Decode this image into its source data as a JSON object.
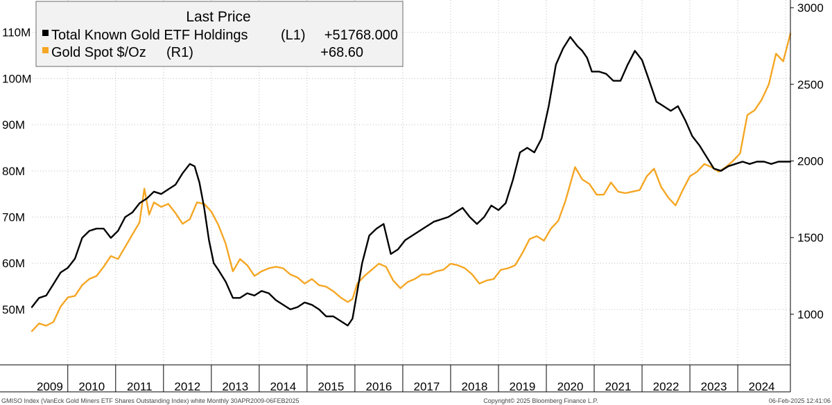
{
  "legend": {
    "header": "Last Price",
    "entries": [
      {
        "name": "Total Known Gold ETF Holdings",
        "axis": "(L1)",
        "value": "+51768.000",
        "color": "#000000"
      },
      {
        "name": "Gold Spot $/Oz",
        "axis": "(R1)",
        "value": "+68.60",
        "color": "#f5a623"
      }
    ]
  },
  "footer": {
    "left": "GMISO Index (VanEck Gold Miners ETF Shares Outstanding Index) white  Monthly 30APR2009-06FEB2025",
    "center": "Copyright© 2025 Bloomberg Finance L.P.",
    "right": "06-Feb-2025 12:41:06"
  },
  "chart_data": {
    "type": "line",
    "x_range": [
      2009.25,
      2025.1
    ],
    "x_tick_labels": [
      "2009",
      "2010",
      "2011",
      "2012",
      "2013",
      "2014",
      "2015",
      "2016",
      "2017",
      "2018",
      "2019",
      "2020",
      "2021",
      "2022",
      "2023",
      "2024"
    ],
    "left_axis": {
      "ylim": [
        38,
        117
      ],
      "ticks": [
        50,
        60,
        70,
        80,
        90,
        100,
        110
      ],
      "tick_labels": [
        "50M",
        "60M",
        "70M",
        "80M",
        "90M",
        "100M",
        "110M"
      ]
    },
    "right_axis": {
      "ylim": [
        670,
        3050
      ],
      "ticks": [
        1000,
        1500,
        2000,
        2500,
        3000
      ],
      "tick_labels": [
        "1000",
        "1500",
        "2000",
        "2500",
        "3000"
      ]
    },
    "grid": true,
    "legend_position": "top-left",
    "series": [
      {
        "name": "Total Known Gold ETF Holdings",
        "axis": "left",
        "unit": "M",
        "color": "#000000",
        "x": [
          2009.25,
          2009.4,
          2009.55,
          2009.7,
          2009.85,
          2010.0,
          2010.15,
          2010.3,
          2010.45,
          2010.6,
          2010.75,
          2010.9,
          2011.05,
          2011.2,
          2011.35,
          2011.5,
          2011.65,
          2011.8,
          2011.95,
          2012.1,
          2012.25,
          2012.4,
          2012.55,
          2012.65,
          2012.75,
          2012.85,
          2012.95,
          2013.05,
          2013.15,
          2013.3,
          2013.45,
          2013.6,
          2013.75,
          2013.9,
          2014.05,
          2014.2,
          2014.35,
          2014.5,
          2014.65,
          2014.8,
          2014.95,
          2015.1,
          2015.25,
          2015.4,
          2015.55,
          2015.7,
          2015.85,
          2015.95,
          2016.05,
          2016.15,
          2016.3,
          2016.45,
          2016.6,
          2016.75,
          2016.9,
          2017.05,
          2017.2,
          2017.35,
          2017.5,
          2017.65,
          2017.8,
          2017.95,
          2018.1,
          2018.25,
          2018.4,
          2018.55,
          2018.7,
          2018.85,
          2019.0,
          2019.15,
          2019.3,
          2019.45,
          2019.6,
          2019.75,
          2019.9,
          2020.05,
          2020.2,
          2020.35,
          2020.5,
          2020.65,
          2020.75,
          2020.85,
          2020.95,
          2021.1,
          2021.25,
          2021.4,
          2021.55,
          2021.7,
          2021.85,
          2022.0,
          2022.15,
          2022.3,
          2022.45,
          2022.6,
          2022.75,
          2022.9,
          2023.05,
          2023.2,
          2023.35,
          2023.5,
          2023.65,
          2023.8,
          2023.95,
          2024.1,
          2024.25,
          2024.4,
          2024.55,
          2024.7,
          2024.85,
          2025.0,
          2025.1
        ],
        "values": [
          50.5,
          52.5,
          53.0,
          55.5,
          58.0,
          59.0,
          61.0,
          65.5,
          67.0,
          67.5,
          67.5,
          65.5,
          67.0,
          70.0,
          71.0,
          73.0,
          74.0,
          75.5,
          75.0,
          76.0,
          77.0,
          79.5,
          81.5,
          81.0,
          77.5,
          72.0,
          65.0,
          60.0,
          58.5,
          56.0,
          52.5,
          52.5,
          53.5,
          53.0,
          54.0,
          53.5,
          52.0,
          51.0,
          50.0,
          50.5,
          51.5,
          51.0,
          50.0,
          48.5,
          48.5,
          47.5,
          46.5,
          48.0,
          54.0,
          60.0,
          66.0,
          67.5,
          68.5,
          62.0,
          63.0,
          65.0,
          66.0,
          67.0,
          68.0,
          69.0,
          69.5,
          70.0,
          71.0,
          72.0,
          70.0,
          68.5,
          70.0,
          72.5,
          71.5,
          73.0,
          78.0,
          84.0,
          85.0,
          84.0,
          87.0,
          94.0,
          103.0,
          106.5,
          109.0,
          107.0,
          106.0,
          104.5,
          101.5,
          101.5,
          101.0,
          99.5,
          99.5,
          103.0,
          106.0,
          104.0,
          99.5,
          95.0,
          94.0,
          93.0,
          94.0,
          91.0,
          87.5,
          85.5,
          83.0,
          80.5,
          80.0,
          81.0,
          81.5,
          82.0,
          81.5,
          82.0,
          82.0,
          81.5,
          82.0,
          82.0,
          82.0
        ],
        "final_change": "+51768.000"
      },
      {
        "name": "Gold Spot $/Oz",
        "axis": "right",
        "unit": "$/Oz",
        "color": "#f5a623",
        "x": [
          2009.25,
          2009.4,
          2009.55,
          2009.7,
          2009.85,
          2010.0,
          2010.15,
          2010.3,
          2010.45,
          2010.6,
          2010.75,
          2010.9,
          2011.05,
          2011.2,
          2011.35,
          2011.5,
          2011.6,
          2011.7,
          2011.8,
          2011.95,
          2012.1,
          2012.25,
          2012.4,
          2012.55,
          2012.7,
          2012.85,
          2013.0,
          2013.15,
          2013.3,
          2013.45,
          2013.6,
          2013.75,
          2013.9,
          2014.05,
          2014.2,
          2014.35,
          2014.5,
          2014.65,
          2014.8,
          2014.95,
          2015.1,
          2015.25,
          2015.4,
          2015.55,
          2015.7,
          2015.85,
          2015.95,
          2016.05,
          2016.2,
          2016.35,
          2016.5,
          2016.65,
          2016.8,
          2016.95,
          2017.1,
          2017.25,
          2017.4,
          2017.55,
          2017.7,
          2017.85,
          2018.0,
          2018.15,
          2018.3,
          2018.45,
          2018.6,
          2018.75,
          2018.9,
          2019.05,
          2019.2,
          2019.35,
          2019.5,
          2019.65,
          2019.8,
          2019.95,
          2020.1,
          2020.25,
          2020.4,
          2020.6,
          2020.75,
          2020.9,
          2021.05,
          2021.2,
          2021.35,
          2021.5,
          2021.65,
          2021.8,
          2021.95,
          2022.1,
          2022.25,
          2022.4,
          2022.55,
          2022.7,
          2022.85,
          2023.0,
          2023.15,
          2023.3,
          2023.45,
          2023.6,
          2023.75,
          2023.9,
          2024.05,
          2024.2,
          2024.35,
          2024.5,
          2024.65,
          2024.8,
          2024.95,
          2025.1
        ],
        "values": [
          890,
          940,
          925,
          950,
          1050,
          1110,
          1120,
          1190,
          1230,
          1250,
          1310,
          1380,
          1360,
          1440,
          1520,
          1600,
          1820,
          1650,
          1730,
          1700,
          1720,
          1660,
          1590,
          1620,
          1730,
          1720,
          1670,
          1580,
          1460,
          1280,
          1360,
          1320,
          1250,
          1280,
          1300,
          1310,
          1300,
          1260,
          1240,
          1200,
          1230,
          1190,
          1180,
          1150,
          1110,
          1080,
          1100,
          1200,
          1250,
          1290,
          1330,
          1310,
          1220,
          1170,
          1210,
          1230,
          1260,
          1260,
          1280,
          1290,
          1330,
          1320,
          1300,
          1260,
          1200,
          1220,
          1230,
          1290,
          1300,
          1320,
          1400,
          1490,
          1510,
          1480,
          1560,
          1610,
          1740,
          1960,
          1880,
          1850,
          1780,
          1780,
          1860,
          1800,
          1790,
          1800,
          1810,
          1900,
          1950,
          1830,
          1760,
          1710,
          1810,
          1900,
          1930,
          1980,
          1960,
          1930,
          1960,
          2000,
          2050,
          2300,
          2330,
          2400,
          2500,
          2700,
          2650,
          2830
        ],
        "final_change": "+68.60"
      }
    ]
  }
}
